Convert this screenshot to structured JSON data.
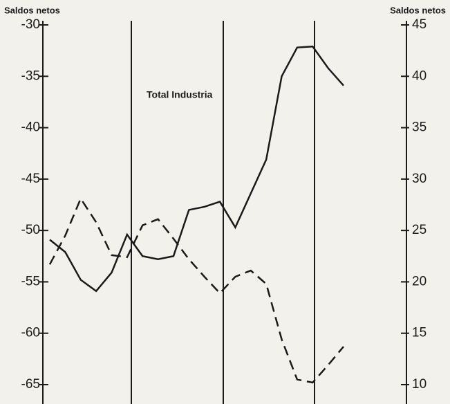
{
  "chart_data": {
    "type": "line",
    "y_label": "Saldos netos",
    "y2_label": "Saldos netos",
    "categories": [
      null,
      null,
      null,
      null,
      null,
      null,
      null,
      null,
      null,
      null,
      null,
      null,
      null,
      null,
      null,
      null,
      null,
      null,
      null,
      null
    ],
    "ylim": [
      -65,
      -30
    ],
    "yticks": [
      -30,
      -35,
      -40,
      -45,
      -50,
      -55,
      -60,
      -65
    ],
    "y2lim": [
      10,
      45
    ],
    "y2ticks": [
      45,
      40,
      35,
      30,
      25,
      20,
      15,
      10
    ],
    "series": [
      {
        "name": "Total  Industria",
        "color": "#1a1a1a",
        "axis": "y2",
        "dash": "solid",
        "values": [
          24.1,
          22.9,
          20.2,
          19.1,
          20.9,
          24.6,
          22.5,
          22.2,
          22.5,
          27.0,
          27.3,
          27.8,
          25.3,
          28.6,
          31.9,
          40.0,
          42.8,
          42.9,
          40.8,
          39.1
        ]
      },
      {
        "color": "#1a1a1a",
        "dash": "dashed",
        "values": [
          -53.3,
          -50.5,
          -46.9,
          -49.2,
          -52.4,
          -52.6,
          -49.5,
          -48.9,
          -50.8,
          -52.8,
          -54.5,
          -56.1,
          -54.5,
          -53.9,
          -55.2,
          -60.6,
          -64.5,
          -64.8,
          -63.1,
          -61.3
        ]
      }
    ]
  }
}
